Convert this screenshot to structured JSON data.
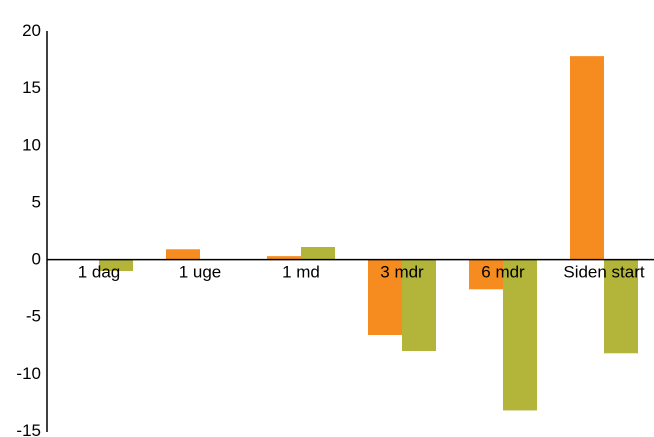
{
  "chart_data": {
    "type": "bar",
    "categories": [
      "1 dag",
      "1 uge",
      "1 md",
      "3 mdr",
      "6 mdr",
      "Siden start"
    ],
    "series": [
      {
        "values": [
          0.0,
          0.9,
          0.3,
          -6.6,
          -2.6,
          17.8
        ],
        "color": "#f68b1f"
      },
      {
        "values": [
          -1.0,
          0.0,
          1.1,
          -8.0,
          -13.2,
          -8.2
        ],
        "color": "#b3b43a"
      }
    ],
    "ylim": [
      -15,
      20
    ],
    "yticks": [
      -15,
      -10,
      -5,
      0,
      5,
      10,
      15,
      20
    ],
    "grid": false,
    "title": "",
    "xlabel": "",
    "ylabel": ""
  }
}
